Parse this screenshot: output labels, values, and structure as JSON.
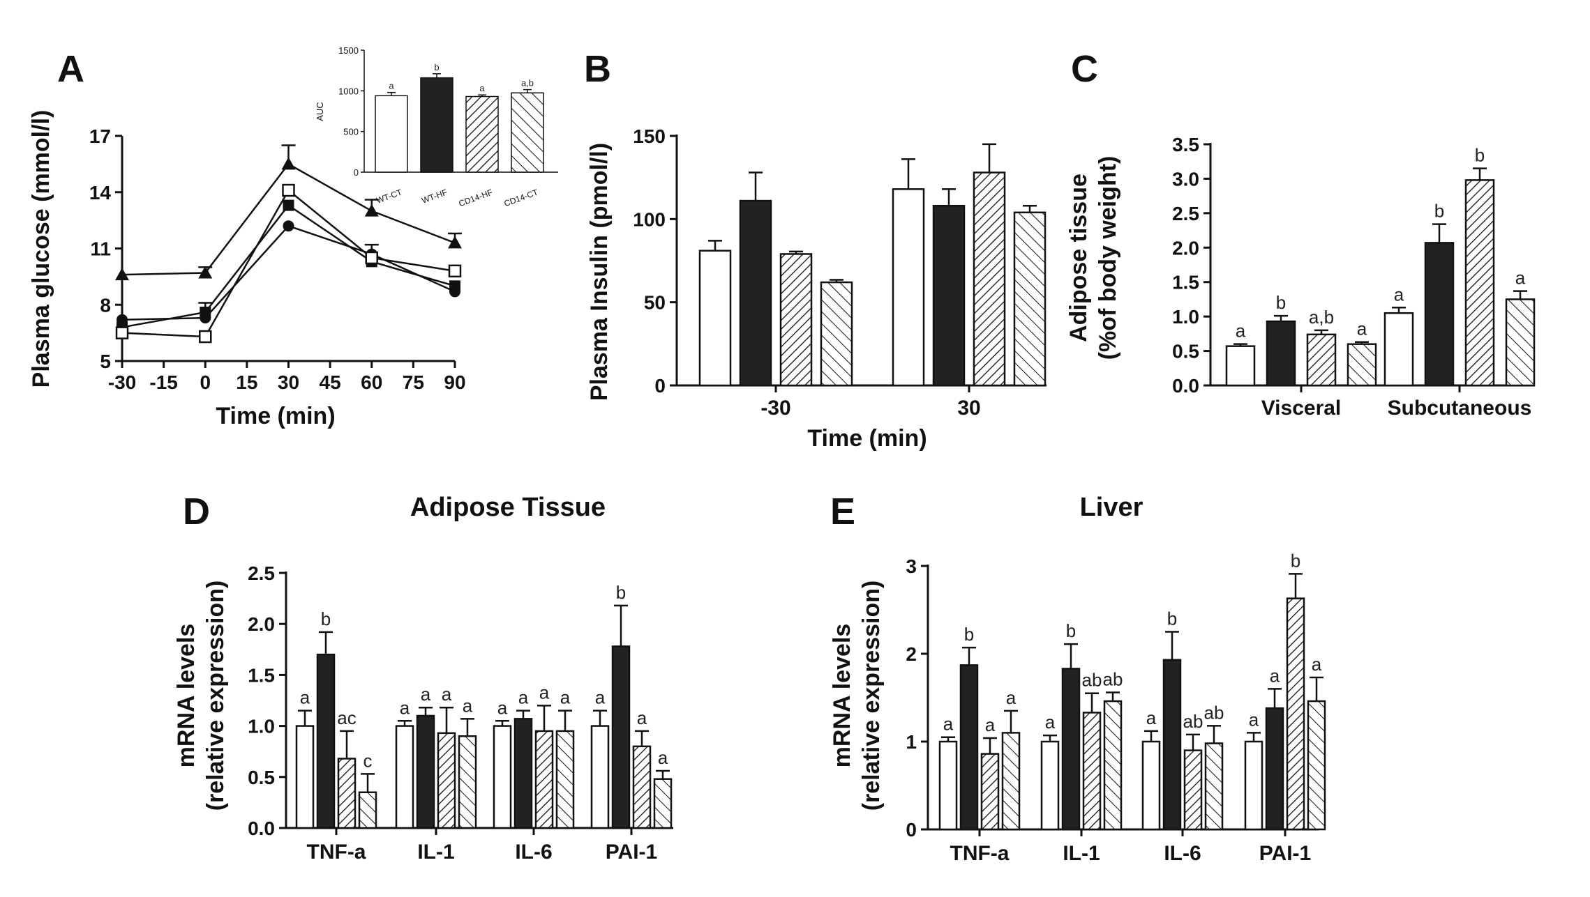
{
  "figure": {
    "panels": [
      "A",
      "B",
      "C",
      "D",
      "E"
    ],
    "bar_fills": {
      "WT-CT": "#ffffff",
      "WT-HF": "#222222",
      "CD14-HF": "hatch-dense",
      "CD14-CT": "hatch-sparse"
    }
  },
  "chart_data": [
    {
      "id": "A",
      "panel_label": "A",
      "type": "line",
      "title": "",
      "xlabel": "Time (min)",
      "ylabel": "Plasma glucose (mmol/l)",
      "x_ticks": [
        "-30",
        "-15",
        "0",
        "15",
        "30",
        "45",
        "60",
        "75",
        "90"
      ],
      "y_ticks": [
        "5",
        "8",
        "11",
        "14",
        "17"
      ],
      "xlim": [
        -30,
        90
      ],
      "ylim": [
        5,
        17
      ],
      "grid": false,
      "series": [
        {
          "marker": "triangle",
          "x": [
            -30,
            0,
            30,
            60,
            90
          ],
          "y": [
            9.6,
            9.7,
            15.5,
            13.0,
            11.3
          ],
          "err": [
            0,
            0.3,
            1.0,
            0.6,
            0.5
          ]
        },
        {
          "marker": "circle",
          "x": [
            -30,
            0,
            30,
            60,
            90
          ],
          "y": [
            7.2,
            7.3,
            12.2,
            10.7,
            8.7
          ],
          "err": [
            0,
            0,
            0,
            0.5,
            0
          ]
        },
        {
          "marker": "filled-square",
          "x": [
            -30,
            0,
            30,
            60,
            90
          ],
          "y": [
            6.8,
            7.6,
            13.3,
            10.3,
            9.0
          ],
          "err": [
            0,
            0.5,
            0,
            0,
            0
          ]
        },
        {
          "marker": "open-square",
          "x": [
            -30,
            0,
            30,
            60,
            90
          ],
          "y": [
            6.5,
            6.3,
            14.1,
            10.5,
            9.8
          ],
          "err": [
            0,
            0,
            0,
            0,
            0
          ]
        }
      ]
    },
    {
      "id": "A-inset",
      "type": "bar",
      "title": "",
      "ylabel": "AUC",
      "categories": [
        "WT-CT",
        "WT-HF",
        "CD14-HF",
        "CD14-CT"
      ],
      "values": [
        940,
        1160,
        930,
        975
      ],
      "err": [
        40,
        50,
        20,
        40
      ],
      "sig": [
        "a",
        "b",
        "a",
        "a,b"
      ],
      "y_ticks": [
        "0",
        "500",
        "1000",
        "1500"
      ],
      "ylim": [
        0,
        1500
      ]
    },
    {
      "id": "B",
      "panel_label": "B",
      "type": "bar",
      "title": "",
      "xlabel": "Time (min)",
      "ylabel": "Plasma Insulin (pmol/l)",
      "categories": [
        "-30",
        "30"
      ],
      "y_ticks": [
        "0",
        "50",
        "100",
        "150"
      ],
      "ylim": [
        0,
        150
      ],
      "series": [
        {
          "values": [
            81,
            118
          ],
          "err": [
            6,
            18
          ]
        },
        {
          "values": [
            111,
            108
          ],
          "err": [
            17,
            10
          ]
        },
        {
          "values": [
            79,
            128
          ],
          "err": [
            1.5,
            17
          ]
        },
        {
          "values": [
            62,
            104
          ],
          "err": [
            1.5,
            4
          ]
        }
      ]
    },
    {
      "id": "C",
      "panel_label": "C",
      "type": "bar",
      "title": "",
      "xlabel": "",
      "ylabel": "Adipose tissue (% of body weight)",
      "ylabel_lines": [
        "Adipose tissue",
        "(%of body weight)"
      ],
      "categories": [
        "Visceral",
        "Subcutaneous"
      ],
      "y_ticks": [
        "0.0",
        "0.5",
        "1.0",
        "1.5",
        "2.0",
        "2.5",
        "3.0",
        "3.5"
      ],
      "ylim": [
        0,
        3.5
      ],
      "series": [
        {
          "values": [
            0.57,
            1.05
          ],
          "err": [
            0.03,
            0.08
          ],
          "sig": [
            "a",
            "a"
          ]
        },
        {
          "values": [
            0.93,
            2.07
          ],
          "err": [
            0.08,
            0.27
          ],
          "sig": [
            "b",
            "b"
          ]
        },
        {
          "values": [
            0.74,
            2.98
          ],
          "err": [
            0.06,
            0.17
          ],
          "sig": [
            "a,b",
            "b"
          ]
        },
        {
          "values": [
            0.6,
            1.25
          ],
          "err": [
            0.03,
            0.12
          ],
          "sig": [
            "a",
            "a"
          ]
        }
      ]
    },
    {
      "id": "D",
      "panel_label": "D",
      "type": "bar",
      "title": "Adipose Tissue",
      "xlabel": "",
      "ylabel": "mRNA levels (relative expression)",
      "ylabel_lines": [
        "mRNA levels",
        "(relative expression)"
      ],
      "categories": [
        "TNF-a",
        "IL-1",
        "IL-6",
        "PAI-1"
      ],
      "y_ticks": [
        "0.0",
        "0.5",
        "1.0",
        "1.5",
        "2.0",
        "2.5"
      ],
      "ylim": [
        0,
        2.5
      ],
      "series": [
        {
          "values": [
            1.0,
            1.0,
            1.0,
            1.0
          ],
          "err": [
            0.15,
            0.05,
            0.05,
            0.15
          ],
          "sig": [
            "a",
            "a",
            "a",
            "a"
          ]
        },
        {
          "values": [
            1.7,
            1.1,
            1.07,
            1.78
          ],
          "err": [
            0.22,
            0.08,
            0.08,
            0.4
          ],
          "sig": [
            "b",
            "a",
            "a",
            "b"
          ]
        },
        {
          "values": [
            0.68,
            0.93,
            0.95,
            0.8
          ],
          "err": [
            0.27,
            0.25,
            0.25,
            0.15
          ],
          "sig": [
            "ac",
            "a",
            "a",
            "a"
          ]
        },
        {
          "values": [
            0.35,
            0.9,
            0.95,
            0.48
          ],
          "err": [
            0.18,
            0.17,
            0.2,
            0.08
          ],
          "sig": [
            "c",
            "a",
            "a",
            "a"
          ]
        }
      ]
    },
    {
      "id": "E",
      "panel_label": "E",
      "type": "bar",
      "title": "Liver",
      "xlabel": "",
      "ylabel": "mRNA levels (relative expression)",
      "ylabel_lines": [
        "mRNA levels",
        "(relative expression)"
      ],
      "categories": [
        "TNF-a",
        "IL-1",
        "IL-6",
        "PAI-1"
      ],
      "y_ticks": [
        "0",
        "1",
        "2",
        "3"
      ],
      "ylim": [
        0,
        3
      ],
      "series": [
        {
          "values": [
            1.0,
            1.0,
            1.0,
            1.0
          ],
          "err": [
            0.05,
            0.07,
            0.12,
            0.1
          ],
          "sig": [
            "a",
            "a",
            "a",
            "a"
          ]
        },
        {
          "values": [
            1.87,
            1.83,
            1.93,
            1.38
          ],
          "err": [
            0.2,
            0.28,
            0.32,
            0.22
          ],
          "sig": [
            "b",
            "b",
            "b",
            "a"
          ]
        },
        {
          "values": [
            0.86,
            1.33,
            0.9,
            2.63
          ],
          "err": [
            0.18,
            0.22,
            0.18,
            0.28
          ],
          "sig": [
            "a",
            "ab",
            "ab",
            "b"
          ]
        },
        {
          "values": [
            1.1,
            1.46,
            0.98,
            1.46
          ],
          "err": [
            0.25,
            0.1,
            0.2,
            0.27
          ],
          "sig": [
            "a",
            "ab",
            "ab",
            "a"
          ]
        }
      ]
    }
  ]
}
